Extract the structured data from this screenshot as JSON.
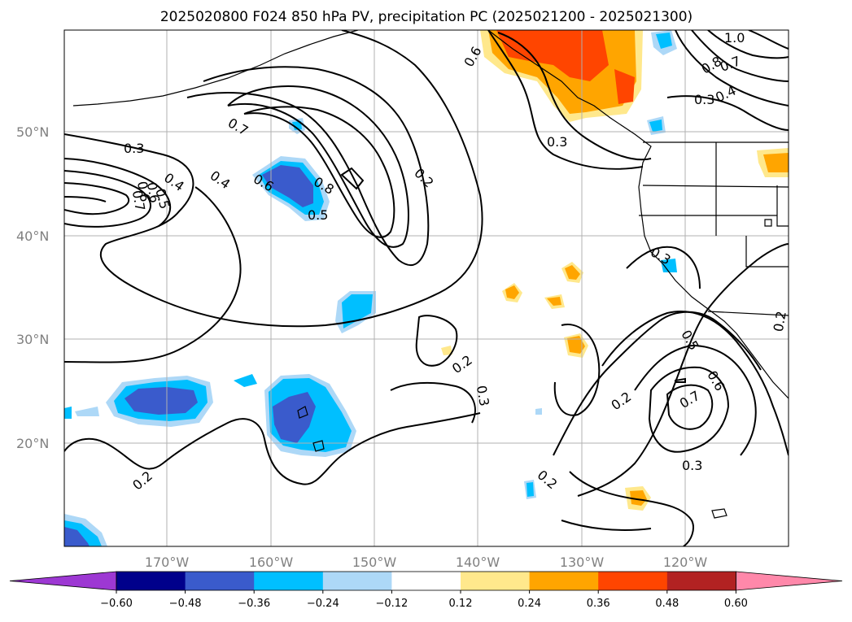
{
  "title": "2025020800 F024 850 hPa PV, precipitation PC (2025021200 - 2025021300)",
  "map": {
    "lat_labels": [
      "50°N",
      "40°N",
      "30°N",
      "20°N"
    ],
    "lon_labels": [
      "170°W",
      "160°W",
      "150°W",
      "140°W",
      "130°W",
      "120°W"
    ],
    "gridlines": true,
    "contour_labels": [
      "0.3",
      "0.6",
      "0.8",
      "0.7",
      "0.6",
      "1.0",
      "0.4",
      "0.3",
      "0.7",
      "0.3",
      "0.4",
      "0.6",
      "0.8",
      "0.5",
      "0.2",
      "0.4",
      "0.5",
      "0.6",
      "0.7",
      "0.2",
      "0.5",
      "0.6",
      "0.7",
      "0.2",
      "0.3",
      "0.3",
      "0.2",
      "0.2",
      "0.2",
      "0.3"
    ]
  },
  "colorbar": {
    "colors": [
      "#9d38d3",
      "#00008b",
      "#3a5bcc",
      "#00bfff",
      "#add8f7",
      "#ffffff",
      "#ffe88c",
      "#ffa500",
      "#ff4500",
      "#b22222",
      "#ff88aa"
    ],
    "ticks": [
      "−0.60",
      "−0.48",
      "−0.36",
      "−0.24",
      "−0.12",
      "0.12",
      "0.24",
      "0.36",
      "0.48",
      "0.60"
    ]
  },
  "colors": {
    "coast": "#000000",
    "grid": "#b0b0b0",
    "blue_light": "#add8f7",
    "blue": "#00bfff",
    "blue_dark": "#3a5bcc",
    "orange_light": "#ffe88c",
    "orange": "#ffa500",
    "red": "#ff4500"
  }
}
